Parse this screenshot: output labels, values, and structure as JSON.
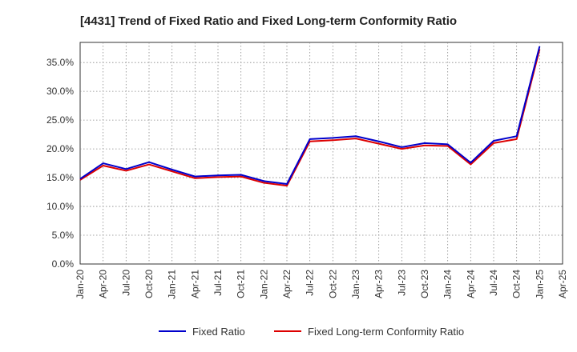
{
  "chart_data": {
    "type": "line",
    "title": "[4431]  Trend of Fixed Ratio and Fixed Long-term Conformity Ratio",
    "xlabel": "",
    "ylabel": "",
    "x_ticks": [
      "Jan-20",
      "Apr-20",
      "Jul-20",
      "Oct-20",
      "Jan-21",
      "Apr-21",
      "Jul-21",
      "Oct-21",
      "Jan-22",
      "Apr-22",
      "Jul-22",
      "Oct-22",
      "Jan-23",
      "Apr-23",
      "Jul-23",
      "Oct-23",
      "Jan-24",
      "Apr-24",
      "Jul-24",
      "Oct-24",
      "Jan-25",
      "Apr-25"
    ],
    "y_ticks": [
      "0.0%",
      "5.0%",
      "10.0%",
      "15.0%",
      "20.0%",
      "25.0%",
      "30.0%",
      "35.0%"
    ],
    "ylim": [
      0,
      38.5
    ],
    "grid": true,
    "legend_position": "bottom",
    "x": [
      "Jan-20",
      "Apr-20",
      "Jul-20",
      "Oct-20",
      "Jan-21",
      "Apr-21",
      "Jul-21",
      "Oct-21",
      "Jan-22",
      "Apr-22",
      "Jul-22",
      "Oct-22",
      "Jan-23",
      "Apr-23",
      "Jul-23",
      "Oct-23",
      "Jan-24",
      "Apr-24",
      "Jul-24",
      "Oct-24",
      "Jan-25"
    ],
    "series": [
      {
        "name": "Fixed Ratio",
        "color": "#0000cc",
        "values": [
          14.8,
          17.5,
          16.5,
          17.7,
          16.4,
          15.2,
          15.4,
          15.5,
          14.4,
          13.9,
          21.7,
          21.9,
          22.2,
          21.3,
          20.3,
          21.0,
          20.8,
          17.6,
          21.4,
          22.2,
          37.8
        ]
      },
      {
        "name": "Fixed Long-term Conformity Ratio",
        "color": "#dd0000",
        "values": [
          14.6,
          17.1,
          16.2,
          17.3,
          16.1,
          14.9,
          15.1,
          15.2,
          14.1,
          13.6,
          21.3,
          21.5,
          21.8,
          20.9,
          20.0,
          20.6,
          20.5,
          17.3,
          21.0,
          21.7,
          37.3
        ]
      }
    ]
  }
}
